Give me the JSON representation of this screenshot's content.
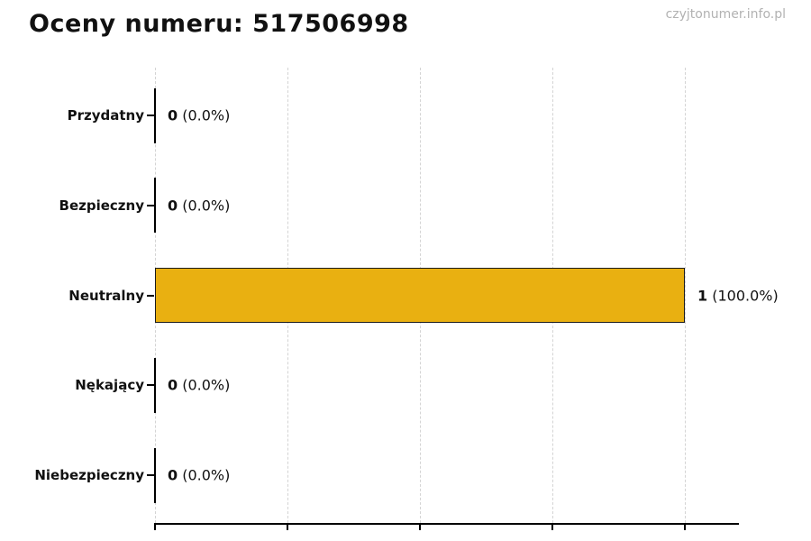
{
  "page": {
    "watermark": "czyjtonumer.info.pl"
  },
  "colors": {
    "bar_fill": "#e9b011",
    "bar_edge": "#1b1b1b",
    "grid": "#d4d4d4",
    "axis": "#000000",
    "title_text": "#111111",
    "watermark_text": "#b2b2b2",
    "background": "#ffffff"
  },
  "chart_data": {
    "type": "bar",
    "orientation": "horizontal",
    "title": "Oceny numeru: 517506998",
    "categories": [
      "Przydatny",
      "Bezpieczny",
      "Neutralny",
      "Nękający",
      "Niebezpieczny"
    ],
    "values": [
      0,
      0,
      1,
      0,
      0
    ],
    "percentages": [
      0.0,
      0.0,
      100.0,
      0.0,
      0.0
    ],
    "bar_labels": [
      {
        "count": "0",
        "pct": "(0.0%)"
      },
      {
        "count": "0",
        "pct": "(0.0%)"
      },
      {
        "count": "1",
        "pct": "(100.0%)"
      },
      {
        "count": "0",
        "pct": "(0.0%)"
      },
      {
        "count": "0",
        "pct": "(0.0%)"
      }
    ],
    "xlabel": "",
    "ylabel": "",
    "xlim": [
      0,
      1.1
    ],
    "x_tick_count": 5,
    "x_tick_labels_visible": false,
    "grid": "vertical-dashed",
    "legend": "none"
  }
}
